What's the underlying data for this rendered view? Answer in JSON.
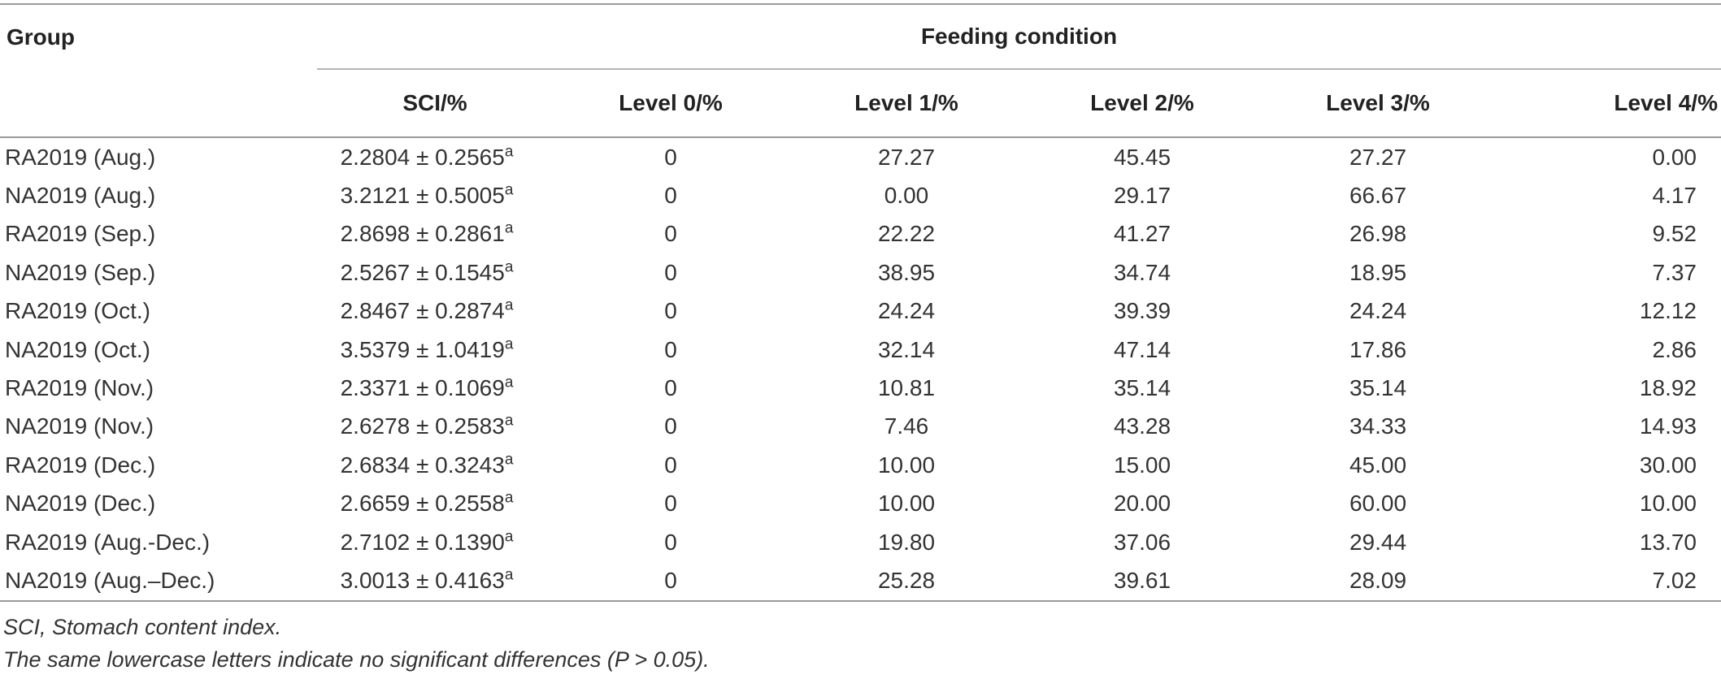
{
  "header": {
    "group": "Group",
    "feeding_condition": "Feeding condition",
    "columns": [
      "SCI/%",
      "Level 0/%",
      "Level 1/%",
      "Level 2/%",
      "Level 3/%",
      "Level 4/%"
    ]
  },
  "rows": [
    {
      "group": "RA2019 (Aug.)",
      "sci": "2.2804 ± 0.2565",
      "sup": "a",
      "l0": "0",
      "l1": "27.27",
      "l2": "45.45",
      "l3": "27.27",
      "l4": "0.00"
    },
    {
      "group": "NA2019 (Aug.)",
      "sci": "3.2121 ± 0.5005",
      "sup": "a",
      "l0": "0",
      "l1": "0.00",
      "l2": "29.17",
      "l3": "66.67",
      "l4": "4.17"
    },
    {
      "group": "RA2019 (Sep.)",
      "sci": "2.8698 ± 0.2861",
      "sup": "a",
      "l0": "0",
      "l1": "22.22",
      "l2": "41.27",
      "l3": "26.98",
      "l4": "9.52"
    },
    {
      "group": "NA2019 (Sep.)",
      "sci": "2.5267 ± 0.1545",
      "sup": "a",
      "l0": "0",
      "l1": "38.95",
      "l2": "34.74",
      "l3": "18.95",
      "l4": "7.37"
    },
    {
      "group": "RA2019 (Oct.)",
      "sci": "2.8467 ± 0.2874",
      "sup": "a",
      "l0": "0",
      "l1": "24.24",
      "l2": "39.39",
      "l3": "24.24",
      "l4": "12.12"
    },
    {
      "group": "NA2019 (Oct.)",
      "sci": "3.5379 ± 1.0419",
      "sup": "a",
      "l0": "0",
      "l1": "32.14",
      "l2": "47.14",
      "l3": "17.86",
      "l4": "2.86"
    },
    {
      "group": "RA2019 (Nov.)",
      "sci": "2.3371 ± 0.1069",
      "sup": "a",
      "l0": "0",
      "l1": "10.81",
      "l2": "35.14",
      "l3": "35.14",
      "l4": "18.92"
    },
    {
      "group": "NA2019 (Nov.)",
      "sci": "2.6278 ± 0.2583",
      "sup": "a",
      "l0": "0",
      "l1": "7.46",
      "l2": "43.28",
      "l3": "34.33",
      "l4": "14.93"
    },
    {
      "group": "RA2019 (Dec.)",
      "sci": "2.6834 ± 0.3243",
      "sup": "a",
      "l0": "0",
      "l1": "10.00",
      "l2": "15.00",
      "l3": "45.00",
      "l4": "30.00"
    },
    {
      "group": "NA2019 (Dec.)",
      "sci": "2.6659 ± 0.2558",
      "sup": "a",
      "l0": "0",
      "l1": "10.00",
      "l2": "20.00",
      "l3": "60.00",
      "l4": "10.00"
    },
    {
      "group": "RA2019 (Aug.-Dec.)",
      "sci": "2.7102 ± 0.1390",
      "sup": "a",
      "l0": "0",
      "l1": "19.80",
      "l2": "37.06",
      "l3": "29.44",
      "l4": "13.70"
    },
    {
      "group": "NA2019 (Aug.–Dec.)",
      "sci": "3.0013 ± 0.4163",
      "sup": "a",
      "l0": "0",
      "l1": "25.28",
      "l2": "39.61",
      "l3": "28.09",
      "l4": "7.02"
    }
  ],
  "notes": [
    "SCI, Stomach content index.",
    "The same lowercase letters indicate no significant differences (P > 0.05)."
  ]
}
